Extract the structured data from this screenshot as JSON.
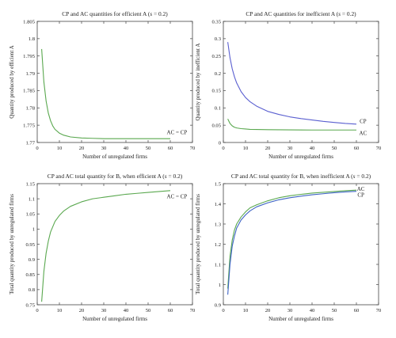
{
  "chart_data": [
    {
      "type": "line",
      "title": "CP and AC quantities for efficient A (s = 0.2)",
      "xlabel": "Number of unregulated firms",
      "ylabel": "Quantity produced by efficient A",
      "xlim": [
        0,
        70
      ],
      "ylim": [
        1.77,
        1.805
      ],
      "xticks": [
        0,
        10,
        20,
        30,
        40,
        50,
        60,
        70
      ],
      "yticks": [
        1.77,
        1.775,
        1.78,
        1.785,
        1.79,
        1.795,
        1.8,
        1.805
      ],
      "ytick_labels": [
        "1.77",
        "1.775",
        "1.78",
        "1.785",
        "1.79",
        "1.795",
        "1.8",
        "1.805"
      ],
      "grid": false,
      "series": [
        {
          "name": "AC = CP",
          "color": "#5aa84f",
          "x": [
            2,
            3,
            4,
            5,
            6,
            7,
            8,
            10,
            12,
            15,
            20,
            25,
            30,
            40,
            50,
            60
          ],
          "y": [
            1.797,
            1.7875,
            1.782,
            1.7785,
            1.7763,
            1.7748,
            1.7738,
            1.7727,
            1.7721,
            1.7716,
            1.7713,
            1.7712,
            1.7711,
            1.7711,
            1.7711,
            1.7711
          ]
        }
      ],
      "annotations": [
        {
          "text": "AC = CP",
          "x": 63,
          "y": 1.773
        }
      ]
    },
    {
      "type": "line",
      "title": "CP and AC quantities for inefficient A (s = 0.2)",
      "xlabel": "Number of unregulated firms",
      "ylabel": "Quantity produced by inefficient A",
      "xlim": [
        0,
        70
      ],
      "ylim": [
        0,
        0.35
      ],
      "xticks": [
        0,
        10,
        20,
        30,
        40,
        50,
        60,
        70
      ],
      "yticks": [
        0,
        0.05,
        0.1,
        0.15,
        0.2,
        0.25,
        0.3,
        0.35
      ],
      "ytick_labels": [
        "0",
        "0.05",
        "0.1",
        "0.15",
        "0.2",
        "0.25",
        "0.3",
        "0.35"
      ],
      "grid": false,
      "series": [
        {
          "name": "CP",
          "color": "#5a5fd0",
          "x": [
            2,
            3,
            4,
            5,
            6,
            8,
            10,
            12,
            15,
            20,
            25,
            30,
            35,
            40,
            45,
            50,
            55,
            60
          ],
          "y": [
            0.29,
            0.245,
            0.213,
            0.19,
            0.172,
            0.147,
            0.13,
            0.118,
            0.105,
            0.09,
            0.081,
            0.074,
            0.069,
            0.065,
            0.061,
            0.058,
            0.055,
            0.053
          ]
        },
        {
          "name": "AC",
          "color": "#5aa84f",
          "x": [
            2,
            3,
            4,
            5,
            6,
            8,
            10,
            12,
            15,
            20,
            30,
            40,
            50,
            60
          ],
          "y": [
            0.068,
            0.055,
            0.048,
            0.044,
            0.042,
            0.04,
            0.039,
            0.038,
            0.0375,
            0.037,
            0.0365,
            0.036,
            0.036,
            0.036
          ]
        }
      ],
      "annotations": [
        {
          "text": "CP",
          "x": 63,
          "y": 0.061
        },
        {
          "text": "AC",
          "x": 63,
          "y": 0.027
        }
      ]
    },
    {
      "type": "line",
      "title": "CP and AC total quantity for B, when efficient A (s = 0.2)",
      "xlabel": "Number of unregulated firms",
      "ylabel": "Total quantity produced by unregulated firms",
      "xlim": [
        0,
        70
      ],
      "ylim": [
        0.75,
        1.15
      ],
      "xticks": [
        0,
        10,
        20,
        30,
        40,
        50,
        60,
        70
      ],
      "yticks": [
        0.75,
        0.8,
        0.85,
        0.9,
        0.95,
        1,
        1.05,
        1.1,
        1.15
      ],
      "ytick_labels": [
        "0.75",
        "0.8",
        "0.85",
        "0.9",
        "0.95",
        "1",
        "1.05",
        "1.1",
        "1.15"
      ],
      "grid": false,
      "series": [
        {
          "name": "AC = CP",
          "color": "#5aa84f",
          "x": [
            2,
            3,
            4,
            5,
            6,
            8,
            10,
            12,
            15,
            20,
            25,
            30,
            35,
            40,
            45,
            50,
            55,
            60
          ],
          "y": [
            0.76,
            0.86,
            0.92,
            0.96,
            0.99,
            1.025,
            1.045,
            1.06,
            1.075,
            1.09,
            1.1,
            1.105,
            1.11,
            1.115,
            1.118,
            1.121,
            1.124,
            1.127
          ]
        }
      ],
      "annotations": [
        {
          "text": "AC = CP",
          "x": 63,
          "y": 1.108
        }
      ]
    },
    {
      "type": "line",
      "title": "CP and AC total quantity for B, when inefficient A (s = 0.2)",
      "xlabel": "Number of unregulated firms",
      "ylabel": "Total quantity produced by unregulated firms",
      "xlim": [
        0,
        70
      ],
      "ylim": [
        0.9,
        1.5
      ],
      "xticks": [
        0,
        10,
        20,
        30,
        40,
        50,
        60,
        70
      ],
      "yticks": [
        0.9,
        1,
        1.1,
        1.2,
        1.3,
        1.4,
        1.5
      ],
      "ytick_labels": [
        "0.9",
        "1",
        "1.1",
        "1.2",
        "1.3",
        "1.4",
        "1.5"
      ],
      "grid": false,
      "series": [
        {
          "name": "AC",
          "color": "#5aa84f",
          "x": [
            2,
            3,
            4,
            5,
            6,
            8,
            10,
            12,
            15,
            20,
            25,
            30,
            35,
            40,
            45,
            50,
            55,
            60
          ],
          "y": [
            0.98,
            1.14,
            1.22,
            1.27,
            1.3,
            1.335,
            1.36,
            1.38,
            1.395,
            1.415,
            1.43,
            1.44,
            1.447,
            1.453,
            1.457,
            1.461,
            1.465,
            1.468
          ]
        },
        {
          "name": "CP",
          "color": "#3d63c4",
          "x": [
            2,
            3,
            4,
            5,
            6,
            8,
            10,
            12,
            15,
            20,
            25,
            30,
            35,
            40,
            45,
            50,
            55,
            60
          ],
          "y": [
            0.95,
            1.1,
            1.19,
            1.24,
            1.28,
            1.32,
            1.345,
            1.365,
            1.385,
            1.405,
            1.42,
            1.43,
            1.438,
            1.445,
            1.45,
            1.455,
            1.459,
            1.462
          ]
        }
      ],
      "annotations": [
        {
          "text": "AC",
          "x": 62,
          "y": 1.475
        },
        {
          "text": "CP",
          "x": 62,
          "y": 1.445
        }
      ]
    }
  ]
}
